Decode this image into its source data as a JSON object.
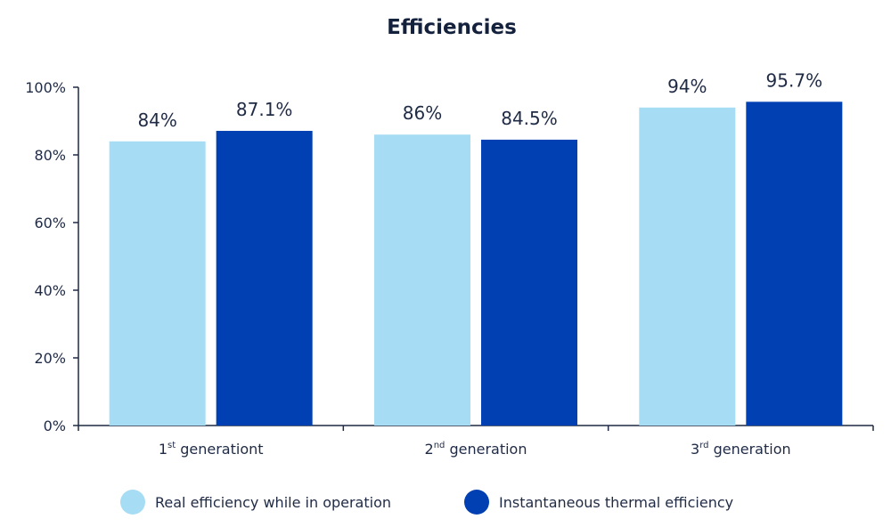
{
  "chart_data": {
    "type": "bar",
    "title": "Efficiencies",
    "categories": [
      {
        "num": "1",
        "sup": "st",
        "rest": " generationt"
      },
      {
        "num": "2",
        "sup": "nd",
        "rest": " generation"
      },
      {
        "num": "3",
        "sup": "rd",
        "rest": " generation"
      }
    ],
    "series": [
      {
        "name": "Real efficiency while in operation",
        "values": [
          84,
          86,
          94
        ],
        "labels": [
          "84%",
          "86%",
          "94%"
        ],
        "color": "#a6dcf4"
      },
      {
        "name": "Instantaneous thermal efficiency",
        "values": [
          87.1,
          84.5,
          95.7
        ],
        "labels": [
          "87.1%",
          "84.5%",
          "95.7%"
        ],
        "color": "#0040b3"
      }
    ],
    "yticks": [
      "0%",
      "20%",
      "40%",
      "60%",
      "80%",
      "100%"
    ],
    "ylim": [
      0,
      100
    ],
    "legend_position": "bottom",
    "grid": false
  }
}
